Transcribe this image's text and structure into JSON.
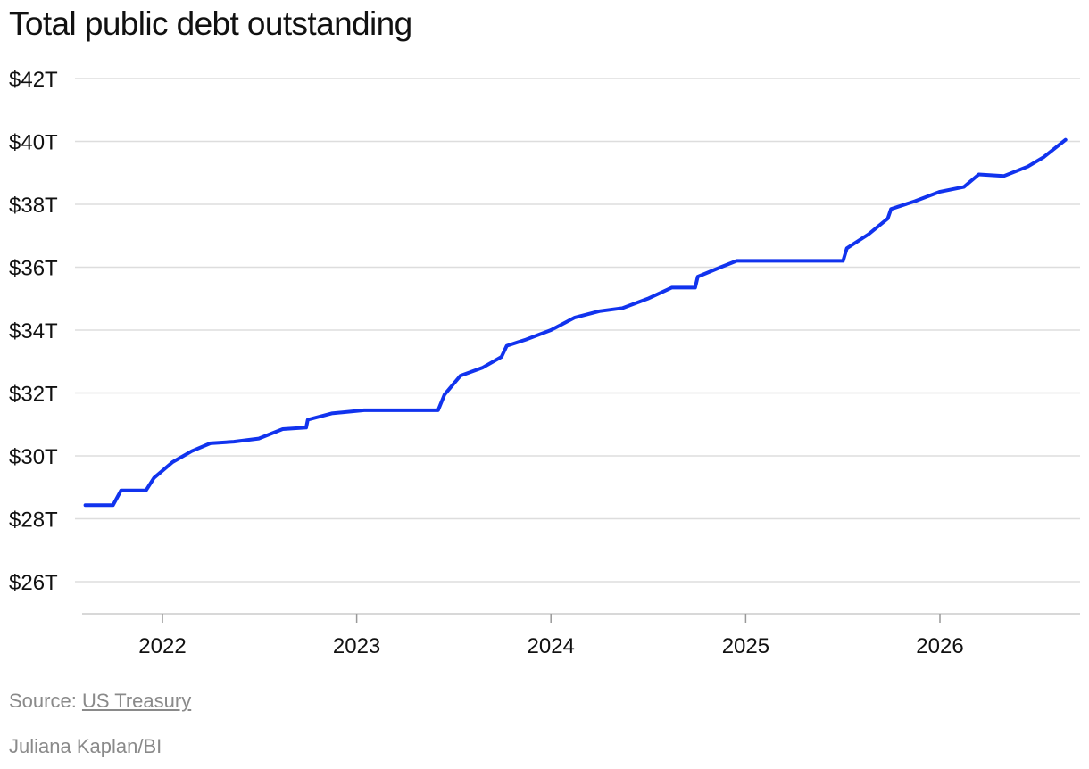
{
  "chart_data": {
    "type": "line",
    "title": "Total public debt outstanding",
    "xlabel": "",
    "ylabel": "",
    "x_ticks": [
      "2022",
      "2023",
      "2024",
      "2025",
      "2026"
    ],
    "y_ticks": [
      "$42T",
      "$40T",
      "$38T",
      "$36T",
      "$34T",
      "$32T",
      "$30T",
      "$28T",
      "$26T"
    ],
    "ylim": [
      26,
      42
    ],
    "xlim": [
      "2021-08-01",
      "2026-10-15"
    ],
    "grid": true,
    "line_color": "#1133ee",
    "series": [
      {
        "x": [
          "2021-08-09",
          "2021-09-30",
          "2021-10-15",
          "2021-12-01",
          "2021-12-16",
          "2022-01-20",
          "2022-02-25",
          "2022-04-01",
          "2022-05-15",
          "2022-07-01",
          "2022-08-15",
          "2022-09-28",
          "2022-10-01",
          "2022-11-15",
          "2023-01-15",
          "2023-03-15",
          "2023-05-01",
          "2023-06-03",
          "2023-06-15",
          "2023-07-15",
          "2023-08-25",
          "2023-09-30",
          "2023-10-10",
          "2023-11-15",
          "2024-01-01",
          "2024-02-15",
          "2024-04-01",
          "2024-05-15",
          "2024-07-01",
          "2024-08-15",
          "2024-09-28",
          "2024-10-03",
          "2024-11-15",
          "2024-12-15",
          "2025-01-15",
          "2025-04-15",
          "2025-07-03",
          "2025-07-10",
          "2025-08-20",
          "2025-09-25",
          "2025-10-01",
          "2025-11-15",
          "2026-01-01",
          "2026-02-15",
          "2026-03-15",
          "2026-05-01",
          "2026-06-15",
          "2026-07-15",
          "2026-08-25"
        ],
        "y": [
          28.43,
          28.43,
          28.9,
          28.9,
          29.3,
          29.8,
          30.15,
          30.4,
          30.45,
          30.55,
          30.85,
          30.9,
          31.15,
          31.35,
          31.45,
          31.45,
          31.45,
          31.45,
          31.95,
          32.55,
          32.8,
          33.15,
          33.5,
          33.7,
          34.0,
          34.4,
          34.6,
          34.7,
          35.0,
          35.35,
          35.35,
          35.7,
          36.0,
          36.2,
          36.2,
          36.2,
          36.2,
          36.6,
          37.05,
          37.55,
          37.85,
          38.1,
          38.4,
          38.55,
          38.95,
          38.9,
          39.2,
          39.5,
          40.05
        ]
      }
    ]
  },
  "footer": {
    "source_label": "Source:",
    "source_link": "US Treasury",
    "credit": "Juliana Kaplan/BI"
  }
}
